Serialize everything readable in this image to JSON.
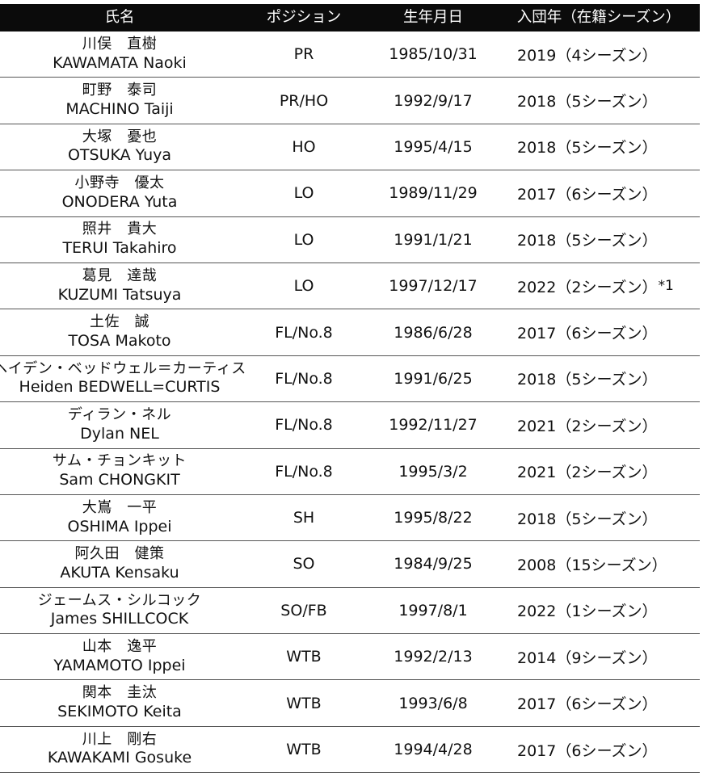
{
  "table": {
    "headers": {
      "name": "氏名",
      "position": "ポジション",
      "birth": "生年月日",
      "joined": "入団年（在籍シーズン）"
    },
    "rows": [
      {
        "name_ja": "川俣　直樹",
        "name_en": "KAWAMATA Naoki",
        "position": "PR",
        "birth": "1985/10/31",
        "joined": "2019（4シーズン）",
        "note": ""
      },
      {
        "name_ja": "町野　泰司",
        "name_en": "MACHINO Taiji",
        "position": "PR/HO",
        "birth": "1992/9/17",
        "joined": "2018（5シーズン）",
        "note": ""
      },
      {
        "name_ja": "大塚　憂也",
        "name_en": "OTSUKA Yuya",
        "position": "HO",
        "birth": "1995/4/15",
        "joined": "2018（5シーズン）",
        "note": ""
      },
      {
        "name_ja": "小野寺　優太",
        "name_en": "ONODERA Yuta",
        "position": "LO",
        "birth": "1989/11/29",
        "joined": "2017（6シーズン）",
        "note": ""
      },
      {
        "name_ja": "照井　貴大",
        "name_en": "TERUI Takahiro",
        "position": "LO",
        "birth": "1991/1/21",
        "joined": "2018（5シーズン）",
        "note": ""
      },
      {
        "name_ja": "葛見　達哉",
        "name_en": "KUZUMI Tatsuya",
        "position": "LO",
        "birth": "1997/12/17",
        "joined": "2022（2シーズン）",
        "note": "*1"
      },
      {
        "name_ja": "土佐　誠",
        "name_en": "TOSA Makoto",
        "position": "FL/No.8",
        "birth": "1986/6/28",
        "joined": "2017（6シーズン）",
        "note": ""
      },
      {
        "name_ja": "ヘイデン・ベッドウェル＝カーティス",
        "name_en": "Heiden BEDWELL=CURTIS",
        "position": "FL/No.8",
        "birth": "1991/6/25",
        "joined": "2018（5シーズン）",
        "note": ""
      },
      {
        "name_ja": "ディラン・ネル",
        "name_en": "Dylan NEL",
        "position": "FL/No.8",
        "birth": "1992/11/27",
        "joined": "2021（2シーズン）",
        "note": ""
      },
      {
        "name_ja": "サム・チョンキット",
        "name_en": "Sam CHONGKIT",
        "position": "FL/No.8",
        "birth": "1995/3/2",
        "joined": "2021（2シーズン）",
        "note": ""
      },
      {
        "name_ja": "大嶌　一平",
        "name_en": "OSHIMA Ippei",
        "position": "SH",
        "birth": "1995/8/22",
        "joined": "2018（5シーズン）",
        "note": ""
      },
      {
        "name_ja": "阿久田　健策",
        "name_en": "AKUTA Kensaku",
        "position": "SO",
        "birth": "1984/9/25",
        "joined": "2008（15シーズン）",
        "note": ""
      },
      {
        "name_ja": "ジェームス・シルコック",
        "name_en": "James SHILLCOCK",
        "position": "SO/FB",
        "birth": "1997/8/1",
        "joined": "2022（1シーズン）",
        "note": ""
      },
      {
        "name_ja": "山本　逸平",
        "name_en": "YAMAMOTO Ippei",
        "position": "WTB",
        "birth": "1992/2/13",
        "joined": "2014（9シーズン）",
        "note": ""
      },
      {
        "name_ja": "関本　圭汰",
        "name_en": "SEKIMOTO Keita",
        "position": "WTB",
        "birth": "1993/6/8",
        "joined": "2017（6シーズン）",
        "note": ""
      },
      {
        "name_ja": "川上　剛右",
        "name_en": "KAWAKAMI Gosuke",
        "position": "WTB",
        "birth": "1994/4/28",
        "joined": "2017（6シーズン）",
        "note": ""
      }
    ]
  }
}
